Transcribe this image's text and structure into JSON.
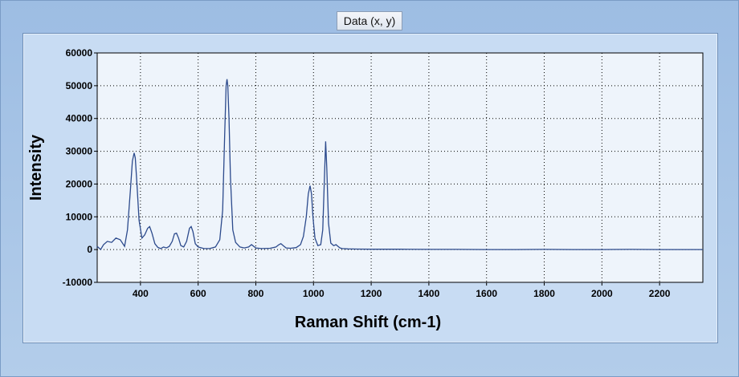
{
  "window": {
    "tab_label": "Data (x, y)"
  },
  "colors": {
    "plot_background": "#eef4fb",
    "line": "#2c4a8c",
    "grid": "#000000"
  },
  "chart_data": {
    "type": "line",
    "title": "",
    "xlabel": "Raman Shift (cm-1)",
    "ylabel": "Intensity",
    "xlim": [
      250,
      2350
    ],
    "ylim": [
      -10000,
      60000
    ],
    "xticks": [
      400,
      600,
      800,
      1000,
      1200,
      1400,
      1600,
      1800,
      2000,
      2200
    ],
    "yticks": [
      -10000,
      0,
      10000,
      20000,
      30000,
      40000,
      50000,
      60000
    ],
    "grid": true,
    "series": [
      {
        "name": "",
        "x": [
          250,
          262,
          272,
          285,
          300,
          315,
          330,
          345,
          355,
          365,
          372,
          378,
          382,
          388,
          395,
          405,
          415,
          425,
          432,
          440,
          450,
          460,
          470,
          480,
          490,
          500,
          510,
          518,
          525,
          532,
          540,
          550,
          560,
          570,
          576,
          582,
          590,
          600,
          620,
          640,
          660,
          675,
          685,
          692,
          697,
          700,
          703,
          707,
          712,
          720,
          730,
          745,
          760,
          775,
          785,
          800,
          820,
          850,
          870,
          880,
          887,
          895,
          905,
          920,
          940,
          955,
          965,
          975,
          982,
          988,
          993,
          998,
          1005,
          1015,
          1025,
          1032,
          1038,
          1042,
          1046,
          1052,
          1060,
          1070,
          1078,
          1085,
          1092,
          1100,
          1120,
          1150,
          1200,
          1300,
          1400,
          1500,
          1600,
          1700,
          1800,
          1900,
          2000,
          2100,
          2200,
          2300,
          2350
        ],
        "y": [
          1000,
          0,
          1500,
          2500,
          2200,
          3500,
          3000,
          1000,
          6000,
          18000,
          27000,
          29500,
          28000,
          20000,
          9000,
          3500,
          4500,
          6500,
          7000,
          5000,
          1800,
          700,
          300,
          800,
          500,
          1000,
          2500,
          4800,
          5000,
          3500,
          1200,
          800,
          2500,
          6500,
          7000,
          5500,
          1800,
          800,
          300,
          300,
          800,
          3000,
          12000,
          35000,
          50000,
          52000,
          50000,
          40000,
          22000,
          6000,
          2200,
          800,
          500,
          800,
          1500,
          500,
          300,
          400,
          800,
          1500,
          1800,
          1200,
          500,
          400,
          600,
          1500,
          4000,
          10000,
          17000,
          19500,
          17000,
          10000,
          3500,
          1200,
          1500,
          6000,
          22000,
          33000,
          25000,
          8000,
          2000,
          1200,
          1500,
          1000,
          500,
          300,
          200,
          150,
          100,
          100,
          50,
          50,
          0,
          0,
          50,
          0,
          0,
          50,
          0,
          0,
          0
        ]
      }
    ]
  }
}
